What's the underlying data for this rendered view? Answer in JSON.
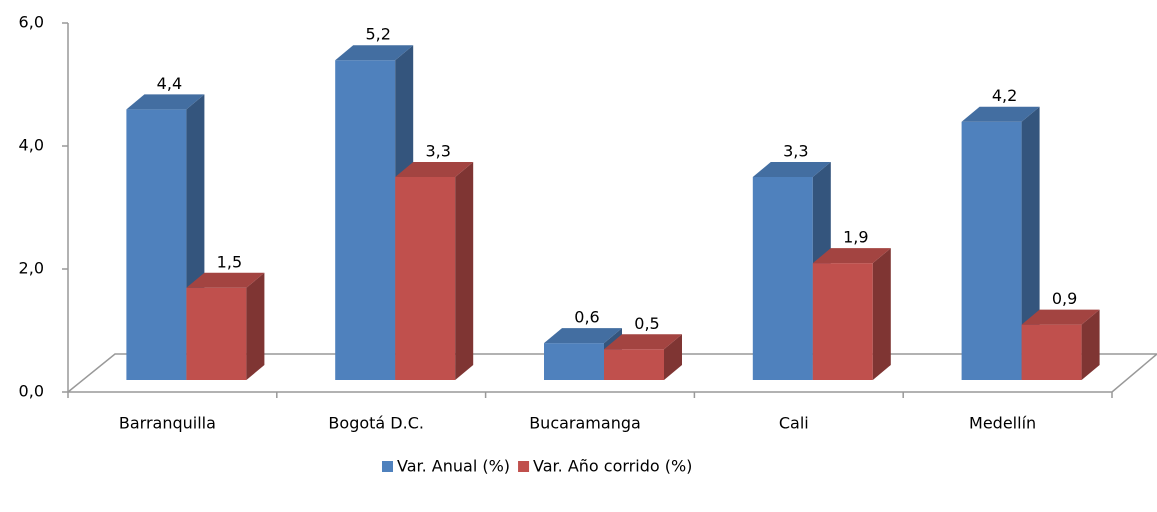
{
  "chart_data": {
    "type": "bar3d",
    "categories": [
      "Barranquilla",
      "Bogotá D.C.",
      "Bucaramanga",
      "Cali",
      "Medellín"
    ],
    "series": [
      {
        "name": "Var. Anual (%)",
        "color": "#4f81bd",
        "values": [
          4.4,
          5.2,
          0.6,
          3.3,
          4.2
        ],
        "value_labels": [
          "4,4",
          "5,2",
          "0,6",
          "3,3",
          "4,2"
        ]
      },
      {
        "name": "Var. Año corrido (%)",
        "color": "#c0504d",
        "values": [
          1.5,
          3.3,
          0.5,
          1.9,
          0.9
        ],
        "value_labels": [
          "1,5",
          "3,3",
          "0,5",
          "1,9",
          "0,9"
        ]
      }
    ],
    "ylim": [
      0,
      6
    ],
    "yticks": [
      {
        "value": 0,
        "label": "0,0"
      },
      {
        "value": 2,
        "label": "2,0"
      },
      {
        "value": 4,
        "label": "4,0"
      },
      {
        "value": 6,
        "label": "6,0"
      }
    ],
    "legend": "bottom"
  }
}
